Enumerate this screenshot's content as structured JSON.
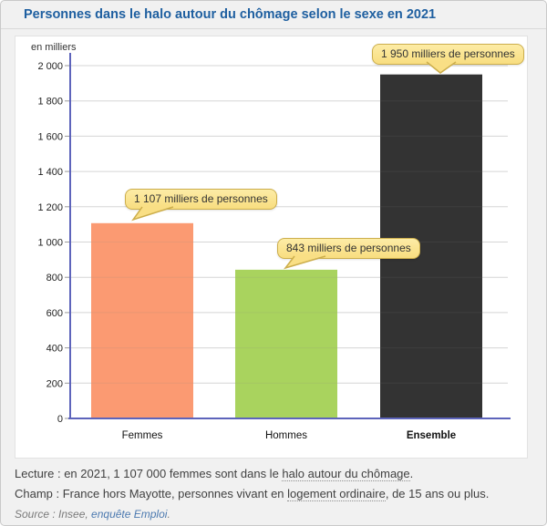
{
  "header": {
    "title": "Personnes dans le halo autour du chômage selon le sexe en 2021"
  },
  "chart_data": {
    "type": "bar",
    "title": "Personnes dans le halo autour du chômage selon le sexe en 2021",
    "unit_label": "en milliers",
    "categories": [
      "Femmes",
      "Hommes",
      "Ensemble"
    ],
    "values": [
      1107,
      843,
      1950
    ],
    "bar_colors": [
      "#fb9a72",
      "#a9d35e",
      "#333333"
    ],
    "bold_category": "Ensemble",
    "callout_labels": [
      "1 107 milliers de personnes",
      "843 milliers de personnes",
      "1 950 milliers de personnes"
    ],
    "ylim": [
      0,
      2000
    ],
    "ytick_step": 200,
    "grid": true,
    "legend": "none",
    "axis_color": "#5d64bb"
  },
  "notes": {
    "lecture_prefix": "Lecture : en 2021, 1 107 000 femmes sont dans le ",
    "lecture_link": "halo autour du chômage",
    "lecture_suffix": ".",
    "champ_prefix": "Champ : France hors Mayotte, personnes vivant en ",
    "champ_link": "logement ordinaire",
    "champ_suffix": ", de 15 ans ou plus.",
    "source_prefix": "Source : Insee, ",
    "source_link": "enquête Emploi",
    "source_suffix": "."
  },
  "colors": {
    "title": "#1e5fa0",
    "card_background": "#f1f1f1",
    "panel_background": "#ffffff",
    "callout_background": "#f9e08a",
    "callout_border": "#ccae4c",
    "axis": "#5d64bb",
    "gridline": "#e4e4e4"
  }
}
